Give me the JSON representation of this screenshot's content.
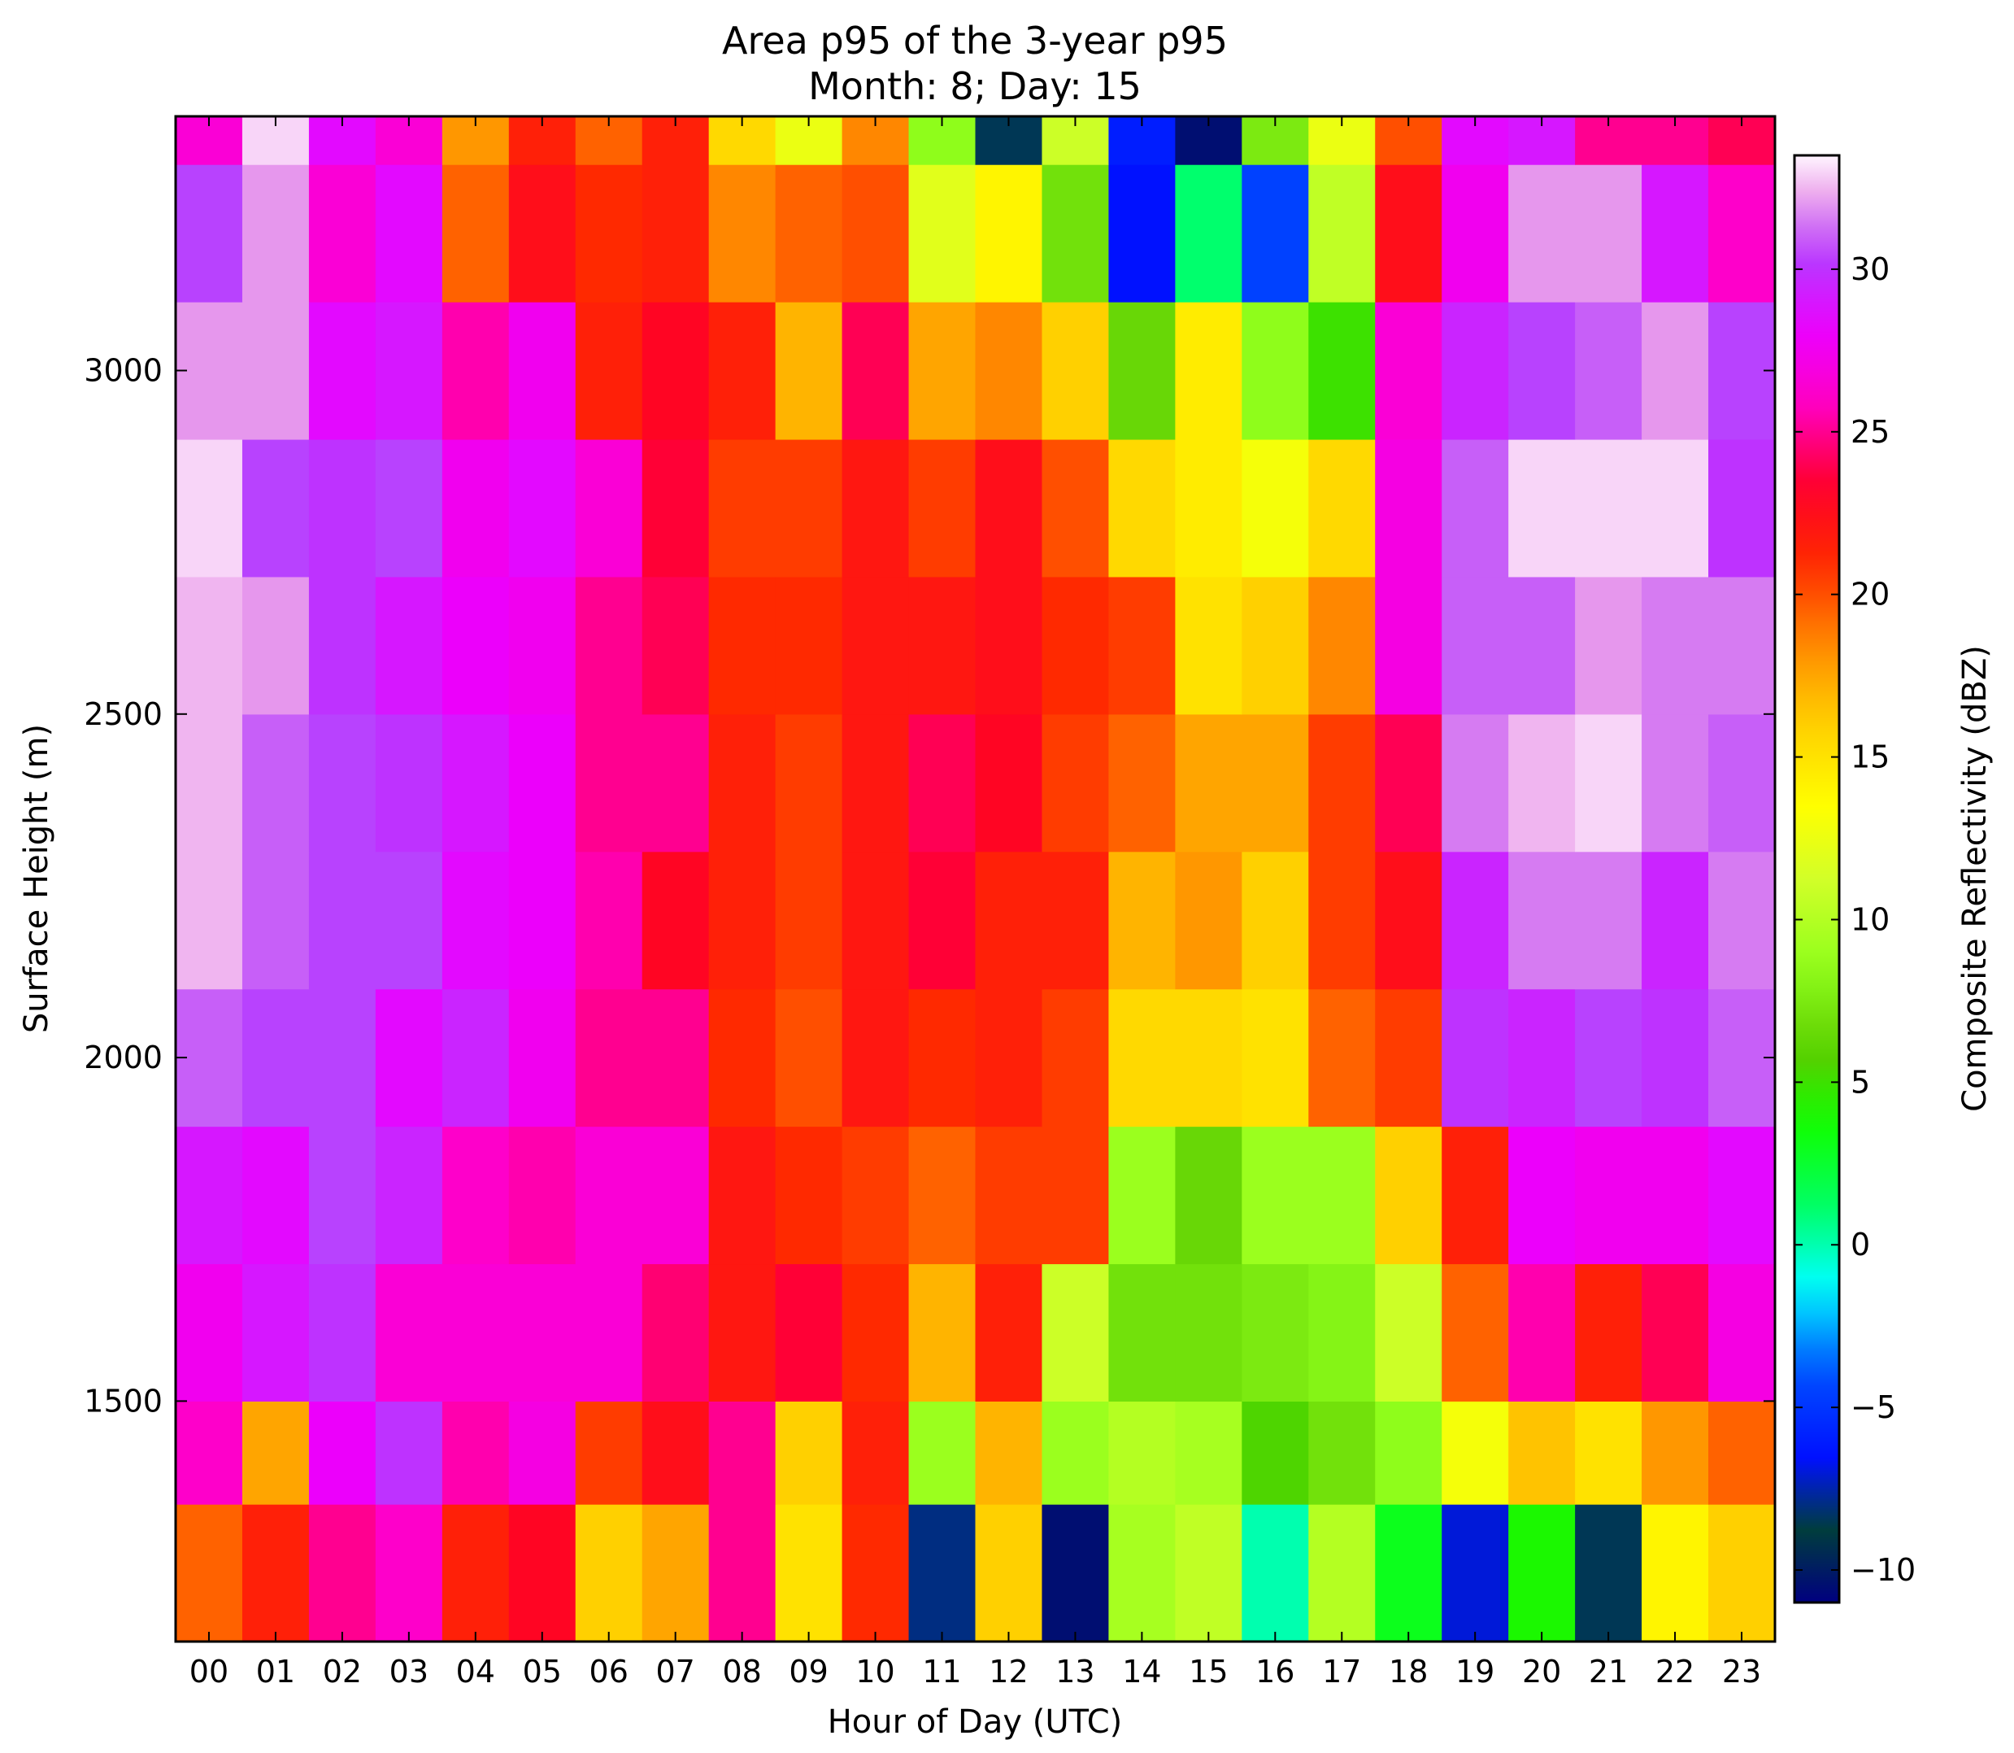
{
  "chart_data": {
    "type": "heatmap",
    "title": "Area p95 of the 3-year p95",
    "subtitle": "Month: 8; Day: 15",
    "xlabel": "Hour of Day (UTC)",
    "ylabel": "Surface Height (m)",
    "colorbar_label": "Composite Reflectivity (dBZ)",
    "colormap": "gist_ncar",
    "x": [
      "00",
      "01",
      "02",
      "03",
      "04",
      "05",
      "06",
      "07",
      "08",
      "09",
      "10",
      "11",
      "12",
      "13",
      "14",
      "15",
      "16",
      "17",
      "18",
      "19",
      "20",
      "21",
      "22",
      "23"
    ],
    "y": [
      1250,
      1400,
      1600,
      1800,
      2000,
      2200,
      2400,
      2600,
      2800,
      3000,
      3200,
      3350
    ],
    "y_edges": [
      1150,
      1350,
      1500,
      1700,
      1900,
      2100,
      2300,
      2500,
      2700,
      2900,
      3100,
      3300,
      3370
    ],
    "ylim": [
      1150,
      3370
    ],
    "yticks": [
      1500,
      2000,
      2500,
      3000
    ],
    "colorbar_range": [
      -11,
      33.5
    ],
    "colorbar_ticks": [
      -10,
      -5,
      0,
      5,
      10,
      15,
      20,
      25,
      30
    ],
    "colorbar_tick_labels": [
      "−10",
      "−5",
      "0",
      "5",
      "10",
      "15",
      "20",
      "25",
      "30"
    ],
    "values": [
      [
        19.5,
        21.5,
        25.0,
        26.0,
        21.5,
        23.0,
        16.0,
        17.5,
        25.0,
        15.0,
        21.0,
        -8.0,
        16.0,
        -10.5,
        9.5,
        10.5,
        0.0,
        10.0,
        3.0,
        -7.0,
        4.0,
        -8.5,
        14.0,
        16.0
      ],
      [
        26.0,
        17.5,
        28.0,
        30.0,
        25.5,
        27.0,
        20.5,
        22.5,
        25.0,
        16.0,
        21.5,
        9.0,
        17.0,
        9.0,
        10.0,
        9.5,
        5.5,
        7.0,
        8.5,
        13.0,
        16.5,
        15.0,
        18.0,
        19.5
      ],
      [
        27.5,
        29.0,
        30.0,
        26.5,
        26.5,
        26.5,
        26.5,
        24.5,
        22.0,
        23.5,
        21.0,
        17.0,
        21.5,
        11.0,
        7.0,
        7.0,
        7.5,
        8.0,
        11.0,
        19.5,
        25.5,
        21.5,
        24.0,
        27.0
      ],
      [
        29.0,
        28.5,
        30.5,
        29.5,
        26.0,
        25.5,
        26.5,
        26.5,
        22.0,
        21.0,
        20.5,
        19.5,
        20.5,
        20.5,
        9.0,
        6.5,
        9.0,
        9.0,
        16.0,
        21.5,
        28.0,
        27.5,
        27.5,
        28.5
      ],
      [
        31.0,
        30.5,
        30.5,
        28.5,
        29.5,
        27.5,
        25.0,
        25.0,
        21.0,
        20.0,
        22.0,
        21.0,
        21.5,
        20.5,
        15.5,
        15.5,
        15.0,
        19.5,
        20.5,
        30.0,
        29.5,
        30.5,
        30.0,
        31.0
      ],
      [
        32.5,
        31.0,
        30.5,
        30.5,
        28.5,
        28.0,
        25.5,
        23.0,
        21.5,
        20.5,
        22.0,
        23.5,
        21.5,
        21.5,
        17.0,
        18.0,
        16.0,
        20.5,
        22.5,
        29.5,
        31.5,
        31.5,
        29.5,
        31.5
      ],
      [
        32.5,
        31.0,
        30.5,
        30.0,
        29.0,
        28.0,
        25.0,
        25.0,
        21.5,
        20.5,
        22.0,
        24.0,
        23.0,
        20.5,
        19.5,
        17.5,
        17.5,
        20.5,
        24.0,
        31.5,
        32.5,
        33.0,
        31.5,
        31.0
      ],
      [
        32.5,
        32.0,
        30.0,
        29.0,
        28.0,
        27.5,
        25.0,
        24.0,
        21.0,
        21.0,
        22.0,
        22.0,
        22.5,
        21.0,
        20.5,
        15.0,
        16.0,
        18.5,
        27.0,
        31.0,
        31.0,
        32.0,
        31.5,
        31.5
      ],
      [
        33.0,
        30.5,
        30.0,
        30.5,
        27.5,
        28.5,
        26.5,
        23.5,
        20.5,
        20.5,
        22.0,
        20.5,
        22.5,
        20.0,
        15.5,
        14.5,
        13.0,
        15.5,
        27.0,
        31.0,
        33.0,
        33.0,
        33.0,
        30.0
      ],
      [
        32.0,
        32.0,
        28.5,
        29.0,
        25.5,
        27.5,
        21.5,
        23.0,
        21.5,
        17.0,
        24.0,
        17.5,
        18.5,
        16.0,
        6.5,
        14.5,
        8.5,
        5.0,
        26.5,
        29.5,
        30.5,
        31.0,
        32.0,
        30.5
      ],
      [
        30.5,
        32.0,
        26.5,
        28.5,
        19.5,
        22.5,
        21.0,
        21.5,
        18.5,
        19.5,
        20.0,
        12.0,
        14.0,
        7.0,
        -6.5,
        1.0,
        -4.5,
        10.5,
        22.5,
        27.5,
        32.0,
        32.0,
        29.0,
        26.0
      ],
      [
        26.5,
        33.0,
        28.5,
        26.5,
        18.0,
        21.5,
        19.5,
        21.5,
        15.5,
        12.5,
        18.5,
        8.5,
        -8.5,
        11.0,
        -6.0,
        -10.5,
        7.5,
        12.5,
        20.0,
        28.5,
        29.0,
        25.0,
        25.0,
        24.0
      ]
    ]
  }
}
